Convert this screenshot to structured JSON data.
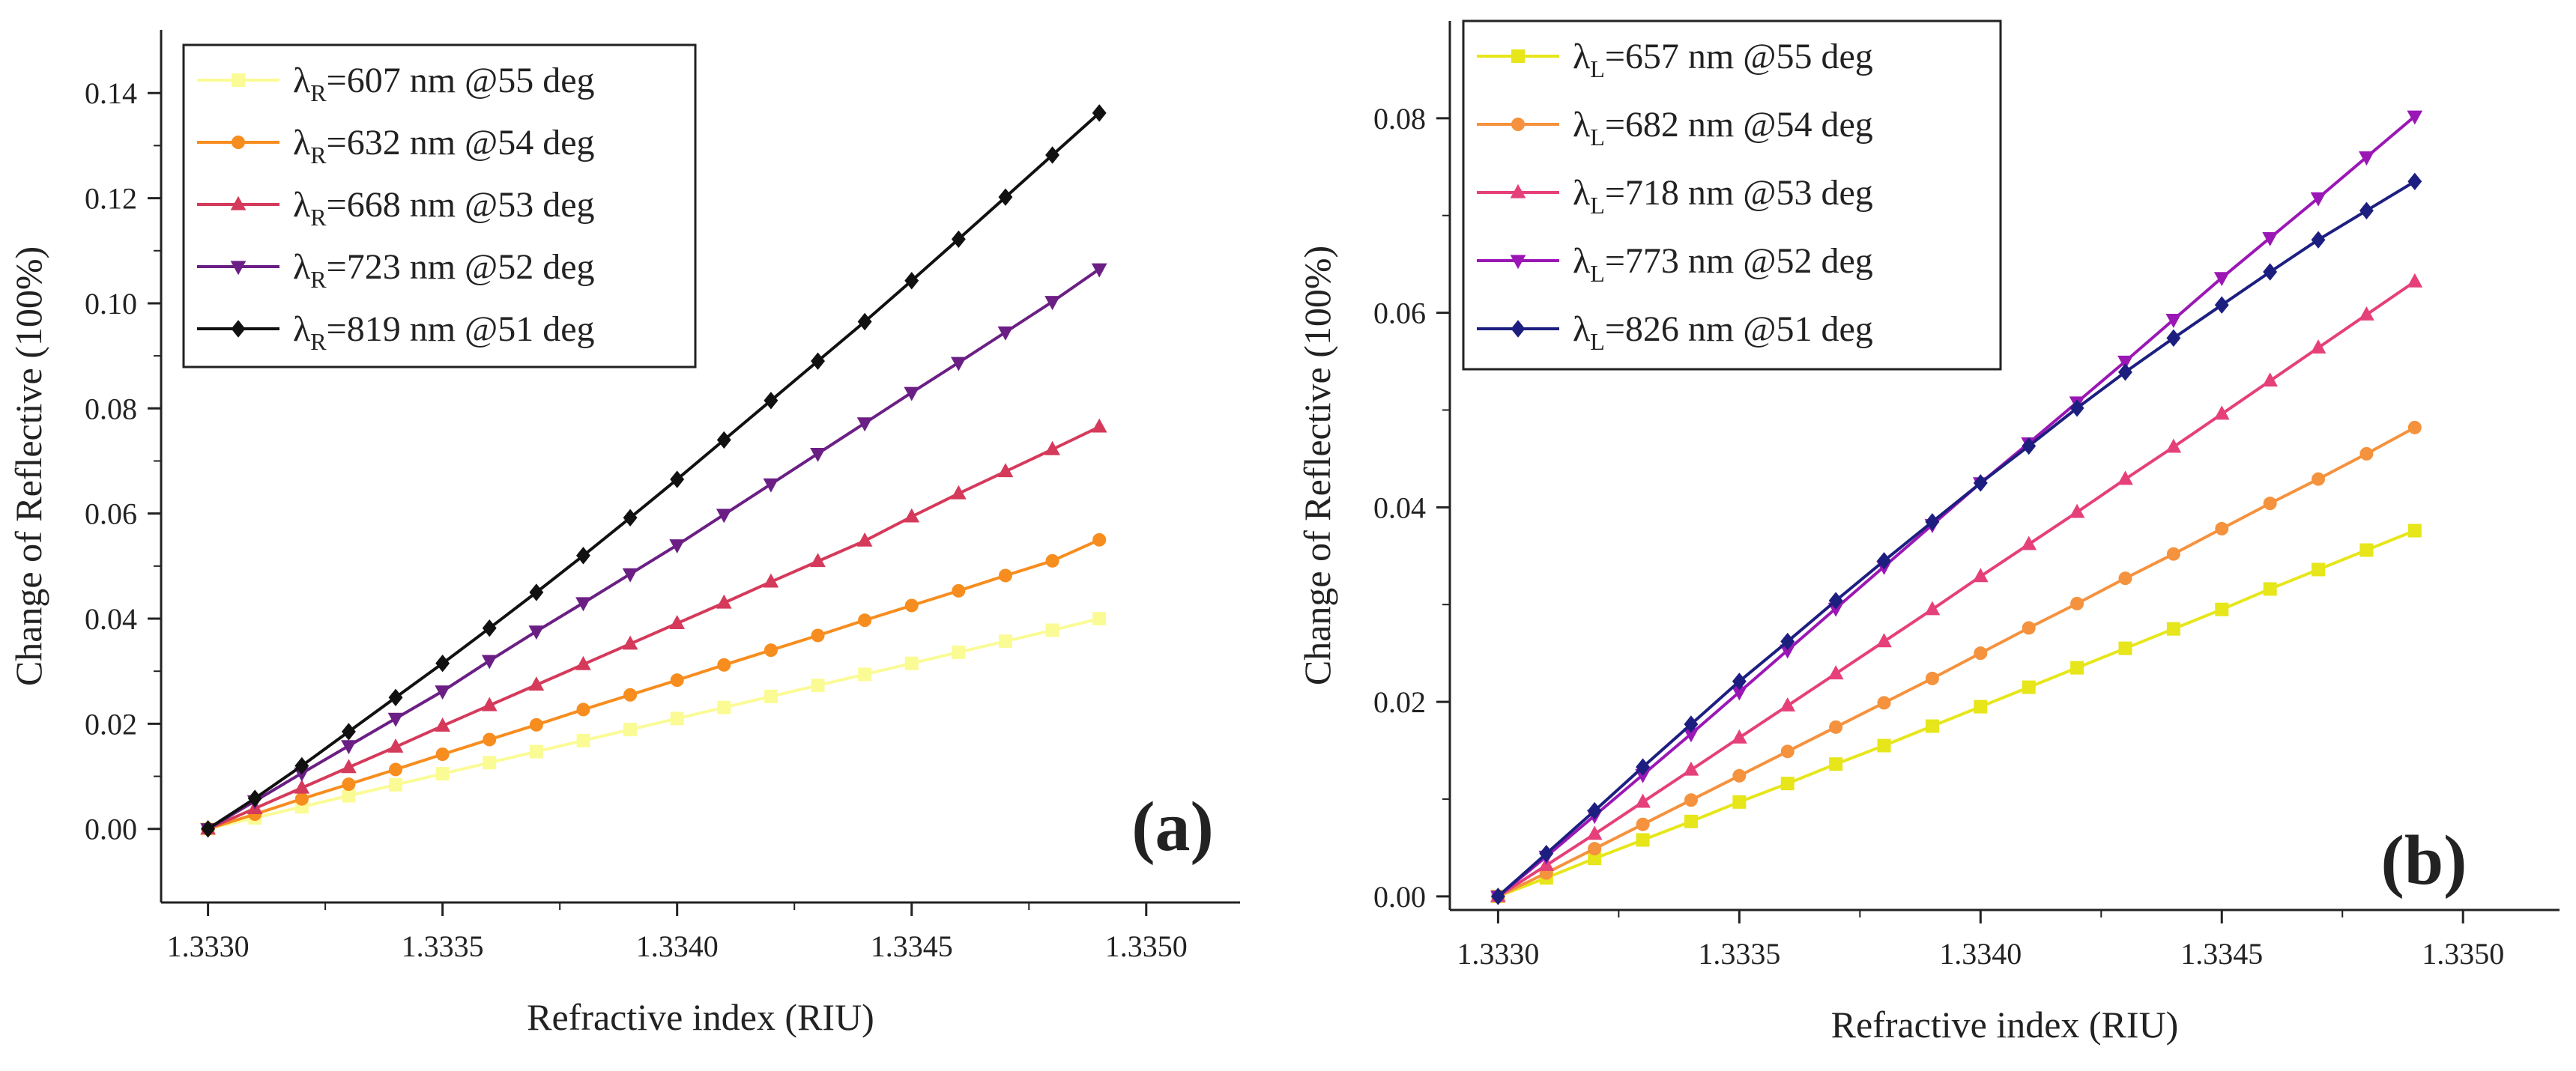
{
  "chart_data": [
    {
      "type": "line",
      "panel_label": "(a)",
      "xlabel": "Refractive index (RIU)",
      "ylabel": "Change of Reflective (100%)",
      "xlim": [
        1.3329,
        1.3352
      ],
      "ylim": [
        -0.014,
        0.152
      ],
      "xticks": [
        1.333,
        1.3335,
        1.334,
        1.3345,
        1.335
      ],
      "xtick_labels": [
        "1.3330",
        "1.3335",
        "1.3340",
        "1.3345",
        "1.3350"
      ],
      "yticks": [
        0.0,
        0.02,
        0.04,
        0.06,
        0.08,
        0.1,
        0.12,
        0.14
      ],
      "ytick_labels": [
        "0.00",
        "0.02",
        "0.04",
        "0.06",
        "0.08",
        "0.10",
        "0.12",
        "0.14"
      ],
      "legend_position": "top-left",
      "x": [
        1.333,
        1.3331,
        1.3332,
        1.3333,
        1.3334,
        1.3335,
        1.3336,
        1.3337,
        1.3338,
        1.3339,
        1.334,
        1.3341,
        1.3342,
        1.3343,
        1.3344,
        1.3345,
        1.3346,
        1.3347,
        1.3348,
        1.3349
      ],
      "series": [
        {
          "symbol": "λ",
          "subscript": "R",
          "label": "=607 nm @55 deg",
          "color": "#fbfb96",
          "marker": "square",
          "values": [
            0.0,
            0.0021,
            0.0042,
            0.0063,
            0.0084,
            0.0105,
            0.0126,
            0.0147,
            0.0168,
            0.0189,
            0.021,
            0.0231,
            0.0252,
            0.0273,
            0.0294,
            0.0315,
            0.0336,
            0.0357,
            0.0378,
            0.04
          ]
        },
        {
          "symbol": "λ",
          "subscript": "R",
          "label": "=632 nm @54 deg",
          "color": "#f78d1e",
          "marker": "circle",
          "values": [
            0.0,
            0.0028,
            0.0057,
            0.0085,
            0.0113,
            0.0142,
            0.017,
            0.0198,
            0.0227,
            0.0255,
            0.0283,
            0.0312,
            0.034,
            0.0368,
            0.0397,
            0.0425,
            0.0453,
            0.0482,
            0.051,
            0.055
          ]
        },
        {
          "symbol": "λ",
          "subscript": "R",
          "label": "=668 nm @53 deg",
          "color": "#d53a5b",
          "marker": "triangle-up",
          "values": [
            0.0,
            0.0039,
            0.0078,
            0.0117,
            0.0156,
            0.0196,
            0.0235,
            0.0274,
            0.0313,
            0.0352,
            0.0391,
            0.043,
            0.047,
            0.0509,
            0.0548,
            0.0594,
            0.0638,
            0.068,
            0.0722,
            0.0765
          ]
        },
        {
          "symbol": "λ",
          "subscript": "R",
          "label": "=723 nm @52 deg",
          "color": "#6b1f84",
          "marker": "triangle-down",
          "values": [
            0.0,
            0.0053,
            0.0106,
            0.0158,
            0.021,
            0.0262,
            0.032,
            0.0376,
            0.043,
            0.0485,
            0.054,
            0.0598,
            0.0656,
            0.0714,
            0.0772,
            0.083,
            0.0887,
            0.0945,
            0.1003,
            0.1065
          ]
        },
        {
          "symbol": "λ",
          "subscript": "R",
          "label": "=819 nm @51 deg",
          "color": "#111111",
          "marker": "diamond",
          "values": [
            0.0,
            0.0058,
            0.012,
            0.0185,
            0.025,
            0.0315,
            0.0382,
            0.045,
            0.052,
            0.0592,
            0.0665,
            0.074,
            0.0815,
            0.089,
            0.0965,
            0.1043,
            0.1122,
            0.1202,
            0.1282,
            0.1362
          ]
        }
      ]
    },
    {
      "type": "line",
      "panel_label": "(b)",
      "xlabel": "Refractive index (RIU)",
      "ylabel": "Change of Reflective (100%)",
      "xlim": [
        1.3329,
        1.3352
      ],
      "ylim": [
        -0.0014,
        0.09
      ],
      "xticks": [
        1.333,
        1.3335,
        1.334,
        1.3345,
        1.335
      ],
      "xtick_labels": [
        "1.3330",
        "1.3335",
        "1.3340",
        "1.3345",
        "1.3350"
      ],
      "yticks": [
        0.0,
        0.02,
        0.04,
        0.06,
        0.08
      ],
      "ytick_labels": [
        "0.00",
        "0.02",
        "0.04",
        "0.06",
        "0.08"
      ],
      "legend_position": "top-left",
      "x": [
        1.333,
        1.3331,
        1.3332,
        1.3333,
        1.3334,
        1.3335,
        1.3336,
        1.3337,
        1.3338,
        1.3339,
        1.334,
        1.3341,
        1.3342,
        1.3343,
        1.3344,
        1.3345,
        1.3346,
        1.3347,
        1.3348,
        1.3349
      ],
      "series": [
        {
          "symbol": "λ",
          "subscript": "L",
          "label": "=657 nm @55 deg",
          "color": "#e6e61a",
          "marker": "square",
          "values": [
            0.0,
            0.0019,
            0.0039,
            0.0058,
            0.0077,
            0.0097,
            0.0116,
            0.0136,
            0.0155,
            0.0175,
            0.0195,
            0.0215,
            0.0235,
            0.0255,
            0.0275,
            0.0295,
            0.0316,
            0.0336,
            0.0356,
            0.0376
          ]
        },
        {
          "symbol": "λ",
          "subscript": "L",
          "label": "=682 nm @54 deg",
          "color": "#f5923e",
          "marker": "circle",
          "values": [
            0.0,
            0.0024,
            0.0049,
            0.0074,
            0.0099,
            0.0124,
            0.0149,
            0.0174,
            0.0199,
            0.0224,
            0.025,
            0.0276,
            0.0301,
            0.0327,
            0.0352,
            0.0378,
            0.0404,
            0.0429,
            0.0455,
            0.0482
          ]
        },
        {
          "symbol": "λ",
          "subscript": "L",
          "label": "=718 nm @53 deg",
          "color": "#e5407a",
          "marker": "triangle-up",
          "values": [
            0.0,
            0.0032,
            0.0064,
            0.0097,
            0.013,
            0.0163,
            0.0196,
            0.0229,
            0.0262,
            0.0295,
            0.0329,
            0.0362,
            0.0395,
            0.0429,
            0.0462,
            0.0496,
            0.053,
            0.0564,
            0.0598,
            0.0632
          ]
        },
        {
          "symbol": "λ",
          "subscript": "L",
          "label": "=773 nm @52 deg",
          "color": "#9b17b5",
          "marker": "triangle-down",
          "values": [
            0.0,
            0.0041,
            0.0083,
            0.0125,
            0.0167,
            0.021,
            0.0253,
            0.0296,
            0.0339,
            0.0382,
            0.0425,
            0.0466,
            0.0508,
            0.055,
            0.0593,
            0.0636,
            0.0677,
            0.0718,
            0.076,
            0.0802
          ]
        },
        {
          "symbol": "λ",
          "subscript": "L",
          "label": "=826 nm @51 deg",
          "color": "#1d1f80",
          "marker": "diamond",
          "values": [
            0.0,
            0.0044,
            0.0088,
            0.0133,
            0.0177,
            0.0221,
            0.0262,
            0.0304,
            0.0345,
            0.0385,
            0.0425,
            0.0463,
            0.0502,
            0.0539,
            0.0574,
            0.0608,
            0.0642,
            0.0675,
            0.0705,
            0.0735
          ]
        }
      ]
    }
  ]
}
